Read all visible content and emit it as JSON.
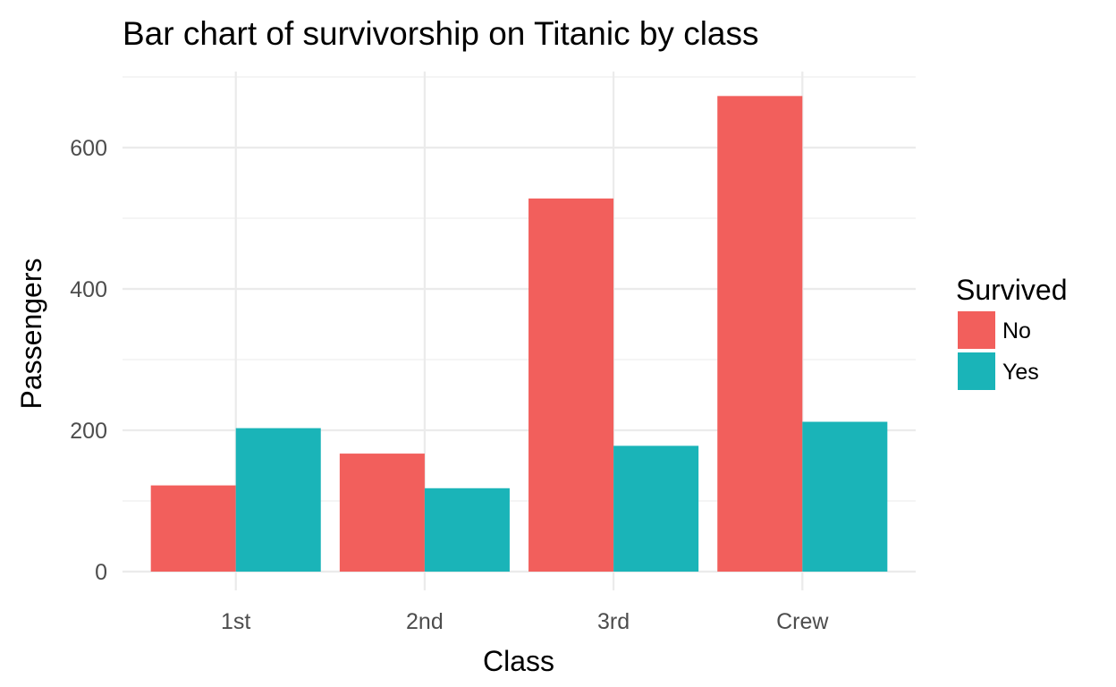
{
  "chart_data": {
    "type": "bar",
    "title": "Bar chart of survivorship on Titanic by class",
    "xlabel": "Class",
    "ylabel": "Passengers",
    "categories": [
      "1st",
      "2nd",
      "3rd",
      "Crew"
    ],
    "series": [
      {
        "name": "No",
        "color": "#F25F5C",
        "values": [
          122,
          167,
          528,
          673
        ]
      },
      {
        "name": "Yes",
        "color": "#1AB4B8",
        "values": [
          203,
          118,
          178,
          212
        ]
      }
    ],
    "ylim": [
      0,
      700
    ],
    "yticks": [
      0,
      200,
      400,
      600
    ],
    "grid": true,
    "legend": {
      "title": "Survived",
      "position": "right"
    }
  }
}
